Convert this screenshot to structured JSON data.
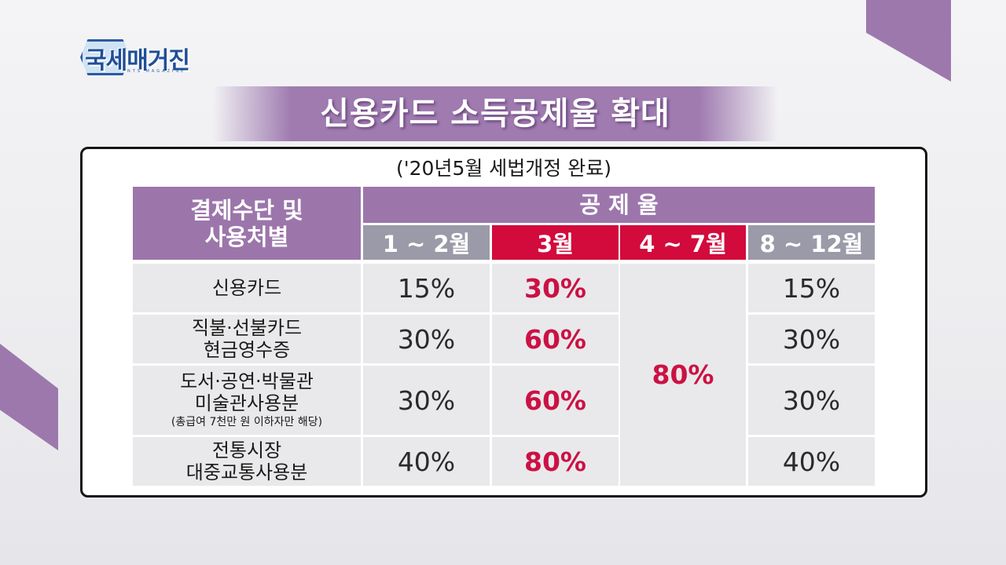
{
  "logo": {
    "text": "국세매거진",
    "sub": "NTS MAGAZINE"
  },
  "title": "신용카드 소득공제율 확대",
  "subtitle": "('20년5월 세법개정 완료)",
  "table": {
    "header_left": "결제수단 및\n사용처별",
    "header_top": "공 제 율",
    "months": [
      "1 ~ 2월",
      "3월",
      "4 ~ 7월",
      "8 ~ 12월"
    ],
    "rows": [
      {
        "label": [
          "신용카드"
        ],
        "note": "",
        "values": [
          "15%",
          "30%",
          "15%"
        ]
      },
      {
        "label": [
          "직불·선불카드",
          "현금영수증"
        ],
        "note": "",
        "values": [
          "30%",
          "60%",
          "30%"
        ]
      },
      {
        "label": [
          "도서·공연·박물관",
          "미술관사용분"
        ],
        "note": "(총급여 7천만 원 이하자만 해당)",
        "values": [
          "30%",
          "60%",
          "30%"
        ]
      },
      {
        "label": [
          "전통시장",
          "대중교통사용분"
        ],
        "note": "",
        "values": [
          "40%",
          "80%",
          "40%"
        ]
      }
    ],
    "merged_value": "80%"
  },
  "colors": {
    "accent_purple": "#9c76ab",
    "highlight_red": "#d30a3c",
    "month_grey": "#9b9aa8"
  }
}
